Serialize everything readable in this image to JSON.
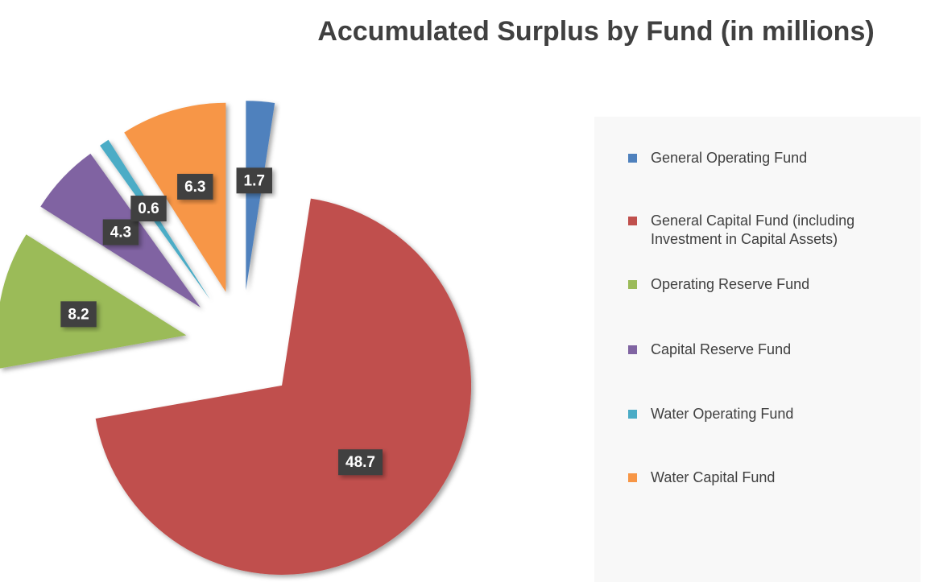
{
  "chart_data": {
    "type": "pie",
    "title": "Accumulated Surplus by Fund (in millions)",
    "categories": [
      "General Operating Fund",
      "General Capital Fund (including Investment in Capital Assets)",
      "Operating Reserve Fund",
      "Capital Reserve Fund",
      "Water Operating Fund",
      "Water Capital Fund"
    ],
    "values": [
      1.7,
      48.7,
      8.2,
      4.3,
      0.6,
      6.3
    ],
    "colors": [
      "#4f81bd",
      "#c0504d",
      "#9bbb59",
      "#8064a2",
      "#4bacc6",
      "#f79646"
    ],
    "exploded": true,
    "legend": "right"
  }
}
